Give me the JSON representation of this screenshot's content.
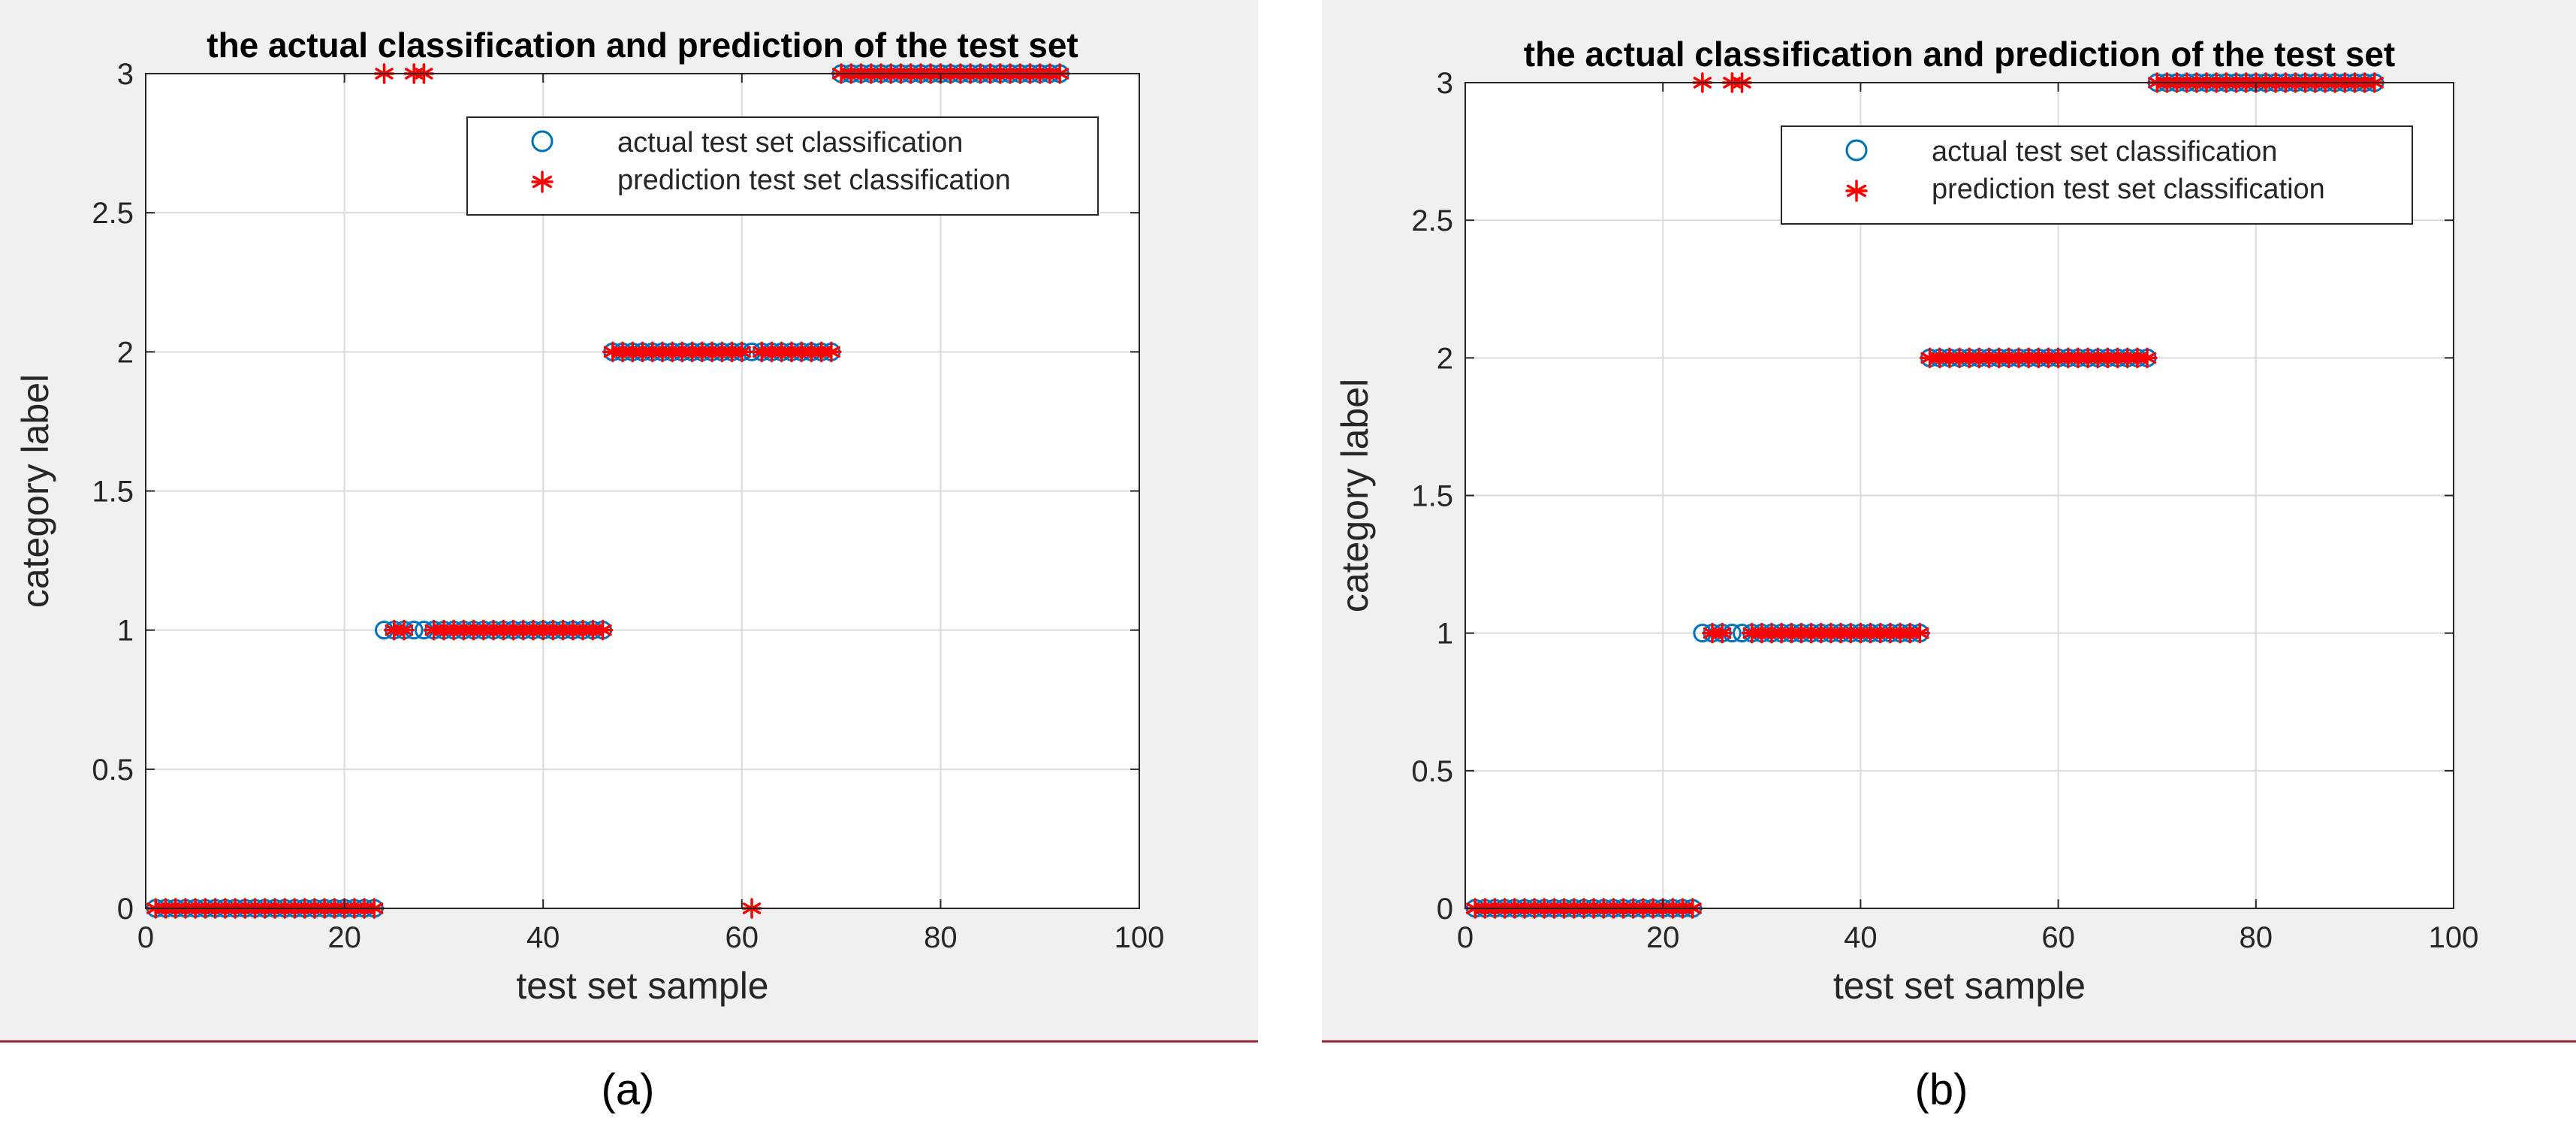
{
  "chart_data": [
    {
      "type": "scatter",
      "panel_label": "(a)",
      "title": "the actual classification and prediction of the test set",
      "xlabel": "test set sample",
      "ylabel": "category label",
      "xlim": [
        0,
        100
      ],
      "ylim": [
        0,
        3
      ],
      "xticks": [
        0,
        20,
        40,
        60,
        80,
        100
      ],
      "yticks": [
        0,
        0.5,
        1,
        1.5,
        2,
        2.5,
        3
      ],
      "xtick_labels": [
        "0",
        "20",
        "40",
        "60",
        "80",
        "100"
      ],
      "ytick_labels": [
        "0",
        "0.5",
        "1",
        "1.5",
        "2",
        "2.5",
        "3"
      ],
      "grid": true,
      "legend_position": "top-right",
      "x": [
        1,
        2,
        3,
        4,
        5,
        6,
        7,
        8,
        9,
        10,
        11,
        12,
        13,
        14,
        15,
        16,
        17,
        18,
        19,
        20,
        21,
        22,
        23,
        24,
        25,
        26,
        27,
        28,
        29,
        30,
        31,
        32,
        33,
        34,
        35,
        36,
        37,
        38,
        39,
        40,
        41,
        42,
        43,
        44,
        45,
        46,
        47,
        48,
        49,
        50,
        51,
        52,
        53,
        54,
        55,
        56,
        57,
        58,
        59,
        60,
        61,
        62,
        63,
        64,
        65,
        66,
        67,
        68,
        69,
        70,
        71,
        72,
        73,
        74,
        75,
        76,
        77,
        78,
        79,
        80,
        81,
        82,
        83,
        84,
        85,
        86,
        87,
        88,
        89,
        90,
        91,
        92
      ],
      "series": [
        {
          "name": "actual test set classification",
          "marker": "circle",
          "color": "#0072BD",
          "values": [
            0,
            0,
            0,
            0,
            0,
            0,
            0,
            0,
            0,
            0,
            0,
            0,
            0,
            0,
            0,
            0,
            0,
            0,
            0,
            0,
            0,
            0,
            0,
            1,
            1,
            1,
            1,
            1,
            1,
            1,
            1,
            1,
            1,
            1,
            1,
            1,
            1,
            1,
            1,
            1,
            1,
            1,
            1,
            1,
            1,
            1,
            2,
            2,
            2,
            2,
            2,
            2,
            2,
            2,
            2,
            2,
            2,
            2,
            2,
            2,
            2,
            2,
            2,
            2,
            2,
            2,
            2,
            2,
            2,
            3,
            3,
            3,
            3,
            3,
            3,
            3,
            3,
            3,
            3,
            3,
            3,
            3,
            3,
            3,
            3,
            3,
            3,
            3,
            3,
            3,
            3,
            3
          ]
        },
        {
          "name": "prediction test set classification",
          "marker": "asterisk",
          "color": "#FF0000",
          "values": [
            0,
            0,
            0,
            0,
            0,
            0,
            0,
            0,
            0,
            0,
            0,
            0,
            0,
            0,
            0,
            0,
            0,
            0,
            0,
            0,
            0,
            0,
            0,
            3,
            1,
            1,
            3,
            3,
            1,
            1,
            1,
            1,
            1,
            1,
            1,
            1,
            1,
            1,
            1,
            1,
            1,
            1,
            1,
            1,
            1,
            1,
            2,
            2,
            2,
            2,
            2,
            2,
            2,
            2,
            2,
            2,
            2,
            2,
            2,
            2,
            0,
            2,
            2,
            2,
            2,
            2,
            2,
            2,
            2,
            3,
            3,
            3,
            3,
            3,
            3,
            3,
            3,
            3,
            3,
            3,
            3,
            3,
            3,
            3,
            3,
            3,
            3,
            3,
            3,
            3,
            3,
            3
          ]
        }
      ]
    },
    {
      "type": "scatter",
      "panel_label": "(b)",
      "title": "the actual classification and prediction of the test set",
      "xlabel": "test set sample",
      "ylabel": "category label",
      "xlim": [
        0,
        100
      ],
      "ylim": [
        0,
        3
      ],
      "xticks": [
        0,
        20,
        40,
        60,
        80,
        100
      ],
      "yticks": [
        0,
        0.5,
        1,
        1.5,
        2,
        2.5,
        3
      ],
      "xtick_labels": [
        "0",
        "20",
        "40",
        "60",
        "80",
        "100"
      ],
      "ytick_labels": [
        "0",
        "0.5",
        "1",
        "1.5",
        "2",
        "2.5",
        "3"
      ],
      "grid": true,
      "legend_position": "top-right",
      "x": [
        1,
        2,
        3,
        4,
        5,
        6,
        7,
        8,
        9,
        10,
        11,
        12,
        13,
        14,
        15,
        16,
        17,
        18,
        19,
        20,
        21,
        22,
        23,
        24,
        25,
        26,
        27,
        28,
        29,
        30,
        31,
        32,
        33,
        34,
        35,
        36,
        37,
        38,
        39,
        40,
        41,
        42,
        43,
        44,
        45,
        46,
        47,
        48,
        49,
        50,
        51,
        52,
        53,
        54,
        55,
        56,
        57,
        58,
        59,
        60,
        61,
        62,
        63,
        64,
        65,
        66,
        67,
        68,
        69,
        70,
        71,
        72,
        73,
        74,
        75,
        76,
        77,
        78,
        79,
        80,
        81,
        82,
        83,
        84,
        85,
        86,
        87,
        88,
        89,
        90,
        91,
        92
      ],
      "series": [
        {
          "name": "actual test set classification",
          "marker": "circle",
          "color": "#0072BD",
          "values": [
            0,
            0,
            0,
            0,
            0,
            0,
            0,
            0,
            0,
            0,
            0,
            0,
            0,
            0,
            0,
            0,
            0,
            0,
            0,
            0,
            0,
            0,
            0,
            1,
            1,
            1,
            1,
            1,
            1,
            1,
            1,
            1,
            1,
            1,
            1,
            1,
            1,
            1,
            1,
            1,
            1,
            1,
            1,
            1,
            1,
            1,
            2,
            2,
            2,
            2,
            2,
            2,
            2,
            2,
            2,
            2,
            2,
            2,
            2,
            2,
            2,
            2,
            2,
            2,
            2,
            2,
            2,
            2,
            2,
            3,
            3,
            3,
            3,
            3,
            3,
            3,
            3,
            3,
            3,
            3,
            3,
            3,
            3,
            3,
            3,
            3,
            3,
            3,
            3,
            3,
            3,
            3
          ]
        },
        {
          "name": "prediction test set classification",
          "marker": "asterisk",
          "color": "#FF0000",
          "values": [
            0,
            0,
            0,
            0,
            0,
            0,
            0,
            0,
            0,
            0,
            0,
            0,
            0,
            0,
            0,
            0,
            0,
            0,
            0,
            0,
            0,
            0,
            0,
            3,
            1,
            1,
            3,
            3,
            1,
            1,
            1,
            1,
            1,
            1,
            1,
            1,
            1,
            1,
            1,
            1,
            1,
            1,
            1,
            1,
            1,
            1,
            2,
            2,
            2,
            2,
            2,
            2,
            2,
            2,
            2,
            2,
            2,
            2,
            2,
            2,
            2,
            2,
            2,
            2,
            2,
            2,
            2,
            2,
            2,
            3,
            3,
            3,
            3,
            3,
            3,
            3,
            3,
            3,
            3,
            3,
            3,
            3,
            3,
            3,
            3,
            3,
            3,
            3,
            3,
            3,
            3,
            3
          ]
        }
      ]
    }
  ]
}
